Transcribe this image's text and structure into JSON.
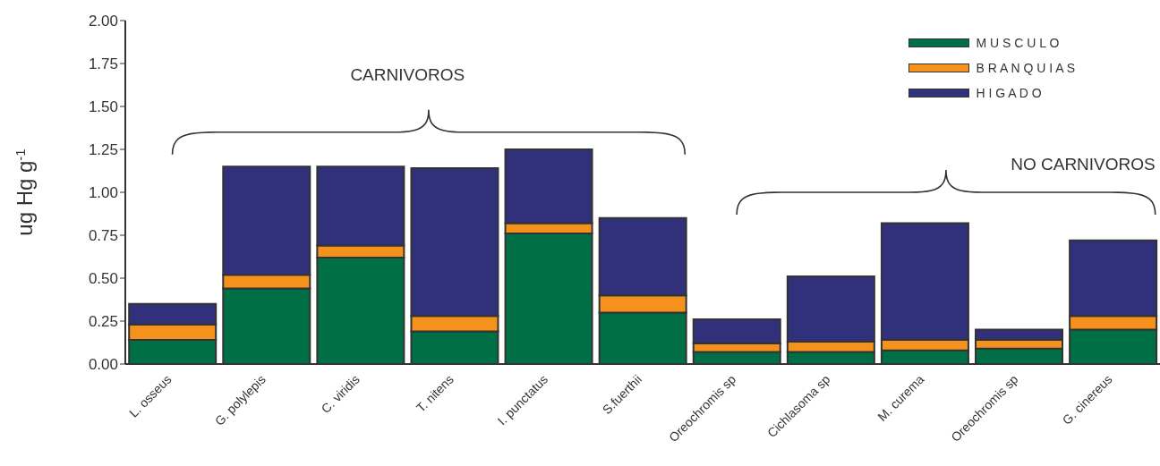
{
  "chart_data": {
    "type": "bar",
    "stacked": true,
    "ylabel": "ug Hg g$^{-1}$",
    "categories": [
      "L. osseus",
      "G. polylepis",
      "C. viridis",
      "T. nitens",
      "I. punctatus",
      "S.fuerthii",
      "Oreochromis sp",
      "Cichlasoma sp",
      "M. curema",
      "Oreochromis sp",
      "G. cinereus"
    ],
    "series": [
      {
        "name": "M U S C U L O",
        "color": "#006f45",
        "values": [
          0.14,
          0.44,
          0.62,
          0.19,
          0.76,
          0.3,
          0.07,
          0.07,
          0.08,
          0.09,
          0.2
        ]
      },
      {
        "name": "B R A N Q U I A S",
        "color": "#f5921e",
        "values": [
          0.09,
          0.08,
          0.07,
          0.09,
          0.06,
          0.1,
          0.05,
          0.06,
          0.06,
          0.05,
          0.08
        ]
      },
      {
        "name": "H I G A D O",
        "color": "#30317a",
        "values": [
          0.12,
          0.63,
          0.46,
          0.86,
          0.43,
          0.45,
          0.14,
          0.38,
          0.68,
          0.06,
          0.44
        ]
      }
    ],
    "ylim": [
      0,
      2
    ],
    "yticks": [
      {
        "value": 0,
        "label": "0.00"
      },
      {
        "value": 0.25,
        "label": "0.25"
      },
      {
        "value": 0.5,
        "label": "0.50"
      },
      {
        "value": 0.75,
        "label": "0.75"
      },
      {
        "value": 1,
        "label": "1.00"
      },
      {
        "value": 1.25,
        "label": "1.25"
      },
      {
        "value": 1.5,
        "label": "1.50"
      },
      {
        "value": 1.75,
        "label": "1.75"
      },
      {
        "value": 2,
        "label": "2.00"
      }
    ],
    "grid": false,
    "legend": "top right",
    "annotations": [
      "CARNIVOROS",
      "NO CARNIVOROS"
    ]
  }
}
